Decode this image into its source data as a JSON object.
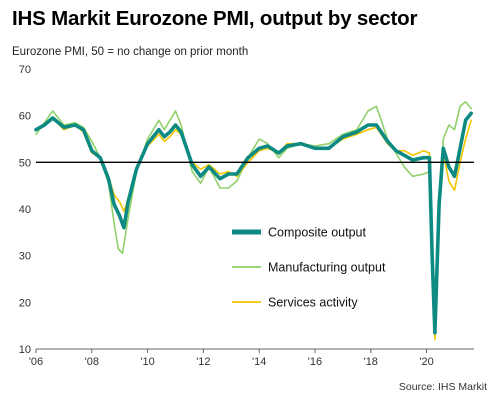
{
  "title": "IHS Markit Eurozone PMI, output by sector",
  "subtitle": "Eurozone PMI, 50 = no change on prior month",
  "source": "Source: IHS Markit",
  "chart_data": {
    "type": "line",
    "x_tick_labels": [
      "'06",
      "'08",
      "'10",
      "'12",
      "'14",
      "'16",
      "'18",
      "'20"
    ],
    "x_tick_years": [
      2006,
      2008,
      2010,
      2012,
      2014,
      2016,
      2018,
      2020
    ],
    "xlim": [
      2006,
      2021.7
    ],
    "ylim": [
      10,
      70
    ],
    "y_ticks": [
      10,
      20,
      30,
      40,
      50,
      60,
      70
    ],
    "reference_line": 50,
    "grid": false,
    "legend_position": "center-right",
    "series": [
      {
        "name": "Manufacturing output",
        "color": "#8fd16a",
        "x": [
          2006,
          2006.3,
          2006.6,
          2007,
          2007.4,
          2007.7,
          2008,
          2008.3,
          2008.6,
          2008.8,
          2008.95,
          2009.1,
          2009.3,
          2009.6,
          2010,
          2010.4,
          2010.6,
          2010.8,
          2011.0,
          2011.2,
          2011.6,
          2011.9,
          2012.2,
          2012.6,
          2012.9,
          2013.2,
          2013.6,
          2014,
          2014.3,
          2014.7,
          2015,
          2015.5,
          2016,
          2016.5,
          2017,
          2017.5,
          2017.9,
          2018.2,
          2018.6,
          2018.9,
          2019.2,
          2019.5,
          2019.9,
          2020.1,
          2020.2,
          2020.3,
          2020.45,
          2020.6,
          2020.8,
          2021.0,
          2021.2,
          2021.4,
          2021.6
        ],
        "y": [
          56,
          58.5,
          61,
          58,
          58.5,
          57.5,
          54.5,
          51,
          45.5,
          37,
          31.5,
          30.5,
          38,
          48,
          55,
          59,
          57,
          59,
          61,
          58,
          48,
          45.5,
          49,
          44.5,
          44.5,
          46,
          51,
          55,
          54,
          51,
          53,
          54,
          53.5,
          54,
          56,
          57,
          61,
          62,
          55,
          52,
          49,
          47,
          47.5,
          48,
          31,
          13.5,
          40,
          55,
          58,
          57,
          62,
          63,
          61.5
        ]
      },
      {
        "name": "Services activity",
        "color": "#f2c500",
        "x": [
          2006,
          2006.3,
          2006.6,
          2007,
          2007.4,
          2007.7,
          2008,
          2008.3,
          2008.6,
          2008.8,
          2009.0,
          2009.15,
          2009.3,
          2009.6,
          2010,
          2010.4,
          2010.6,
          2010.8,
          2011.0,
          2011.2,
          2011.6,
          2011.9,
          2012.2,
          2012.6,
          2012.9,
          2013.2,
          2013.6,
          2014,
          2014.3,
          2014.7,
          2015,
          2015.5,
          2016,
          2016.5,
          2017,
          2017.5,
          2017.9,
          2018.2,
          2018.6,
          2018.9,
          2019.2,
          2019.5,
          2019.9,
          2020.1,
          2020.2,
          2020.3,
          2020.45,
          2020.6,
          2020.8,
          2021.0,
          2021.2,
          2021.4,
          2021.6
        ],
        "y": [
          57,
          58,
          59.5,
          57,
          58,
          56.5,
          52,
          51,
          47,
          43,
          41.5,
          39.5,
          42,
          49,
          53.5,
          56,
          54.5,
          55.5,
          57,
          56,
          50,
          48.5,
          49.5,
          47.5,
          48,
          47,
          50,
          52.5,
          53,
          52,
          54,
          54,
          53,
          53,
          55,
          56,
          57,
          57.5,
          54,
          52.5,
          52.5,
          51.5,
          52.5,
          52,
          27,
          12,
          41,
          52,
          46,
          44,
          50,
          55,
          59
        ]
      },
      {
        "name": "Composite output",
        "color": "#0d8b83",
        "x": [
          2006,
          2006.3,
          2006.6,
          2007,
          2007.4,
          2007.7,
          2008,
          2008.3,
          2008.6,
          2008.8,
          2009.0,
          2009.15,
          2009.3,
          2009.6,
          2010,
          2010.4,
          2010.6,
          2010.8,
          2011.0,
          2011.2,
          2011.6,
          2011.9,
          2012.2,
          2012.6,
          2012.9,
          2013.2,
          2013.6,
          2014,
          2014.3,
          2014.7,
          2015,
          2015.5,
          2016,
          2016.5,
          2017,
          2017.5,
          2017.9,
          2018.2,
          2018.6,
          2018.9,
          2019.2,
          2019.5,
          2019.9,
          2020.1,
          2020.2,
          2020.3,
          2020.45,
          2020.6,
          2020.8,
          2021.0,
          2021.2,
          2021.4,
          2021.6
        ],
        "y": [
          57,
          58,
          59.5,
          57.5,
          58,
          57,
          52.5,
          51,
          46.5,
          41,
          38.5,
          36,
          41.5,
          48.5,
          54,
          57,
          55.5,
          56.5,
          58,
          56.5,
          49.5,
          47,
          49,
          46.5,
          47.5,
          47.5,
          51,
          53,
          53.5,
          52,
          53.5,
          54,
          53,
          53,
          55.5,
          56.5,
          58,
          58,
          54.5,
          52.5,
          51.5,
          50.5,
          51,
          51,
          29.5,
          13.5,
          41,
          53,
          49,
          47,
          53,
          59,
          60.5
        ]
      }
    ]
  }
}
